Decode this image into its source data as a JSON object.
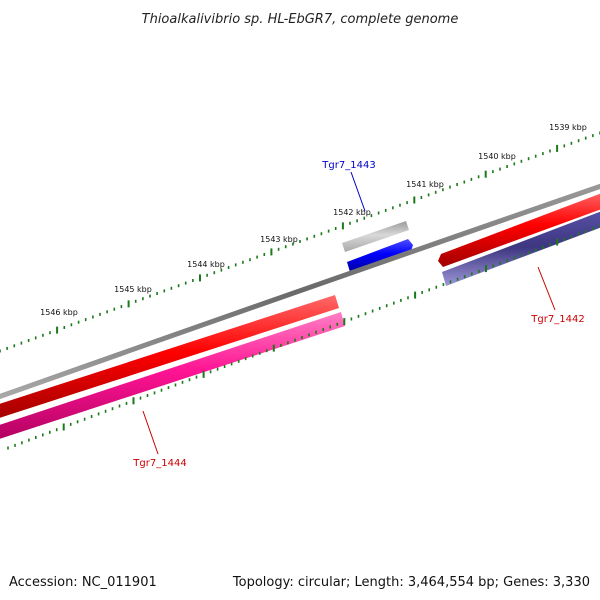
{
  "title": "Thioalkalivibrio sp. HL-EbGR7, complete genome",
  "footer": {
    "accession": "Accession: NC_011901",
    "summary": "Topology: circular; Length: 3,464,554 bp; Genes: 3,330"
  },
  "scale_labels": [
    "1539 kbp",
    "1540 kbp",
    "1541 kbp",
    "1542 kbp",
    "1543 kbp",
    "1544 kbp",
    "1545 kbp",
    "1546 kbp"
  ],
  "genes": [
    {
      "name": "Tgr7_1443",
      "color": "#0000cc"
    },
    {
      "name": "Tgr7_1442",
      "color": "#cc0000"
    },
    {
      "name": "Tgr7_1444",
      "color": "#cc0000"
    }
  ],
  "colors": {
    "backbone": "#7a7a7a",
    "tick": "#1a7a1a",
    "forward_feature": "#ff0000",
    "reverse_feature_a": "#ff1493",
    "reverse_feature_b": "#4b4390",
    "grey_feature": "#bcbcbc",
    "blue_feature": "#0000ff"
  }
}
